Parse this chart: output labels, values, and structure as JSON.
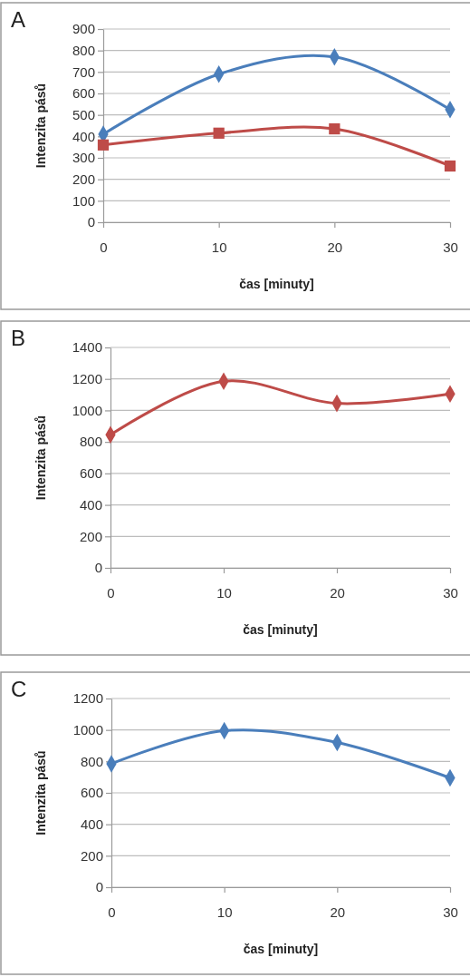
{
  "chart_data": [
    {
      "type": "line",
      "title": "A",
      "xlabel": "čas [minuty]",
      "ylabel": "Intenzita pásů",
      "x": [
        0,
        10,
        20,
        30
      ],
      "xlim": [
        0,
        30
      ],
      "xticks": [
        0,
        10,
        20,
        30
      ],
      "ylim": [
        0,
        900
      ],
      "yticks": [
        0,
        100,
        200,
        300,
        400,
        500,
        600,
        700,
        800,
        900
      ],
      "grid": "y",
      "series": [
        {
          "color": "#4a7ebb",
          "marker": "diamond",
          "values": [
            410,
            690,
            770,
            525
          ]
        },
        {
          "color": "#be4b48",
          "marker": "square",
          "values": [
            360,
            415,
            435,
            262
          ]
        }
      ]
    },
    {
      "type": "line",
      "title": "B",
      "xlabel": "čas [minuty]",
      "ylabel": "Intenzita pásů",
      "x": [
        0,
        10,
        20,
        30
      ],
      "xlim": [
        0,
        30
      ],
      "xticks": [
        0,
        10,
        20,
        30
      ],
      "ylim": [
        0,
        1400
      ],
      "yticks": [
        0,
        200,
        400,
        600,
        800,
        1000,
        1200,
        1400
      ],
      "grid": "y",
      "marker": "diamond",
      "series": [
        {
          "color": "#be4b48",
          "values": [
            845,
            1185,
            1045,
            1105
          ]
        }
      ]
    },
    {
      "type": "line",
      "title": "C",
      "xlabel": "čas [minuty]",
      "ylabel": "Intenzita pásů",
      "x": [
        0,
        10,
        20,
        30
      ],
      "xlim": [
        0,
        30
      ],
      "xticks": [
        0,
        10,
        20,
        30
      ],
      "ylim": [
        0,
        1200
      ],
      "yticks": [
        0,
        200,
        400,
        600,
        800,
        1000,
        1200
      ],
      "grid": "y",
      "marker": "diamond",
      "series": [
        {
          "color": "#4a7ebb",
          "values": [
            785,
            995,
            920,
            695
          ]
        }
      ]
    }
  ]
}
